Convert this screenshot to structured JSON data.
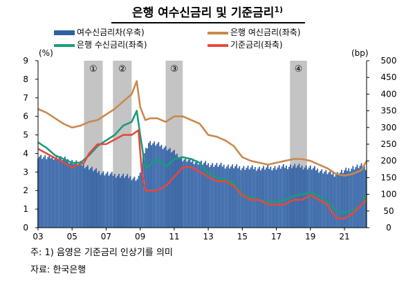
{
  "title": "은행 여수신금리 및 기준금리",
  "title_sup": "1)",
  "legend": [
    {
      "label": "여수신금리차(우축)",
      "color": "#2e5fa4",
      "kind": "bar"
    },
    {
      "label": "은행 여신금리(좌축)",
      "color": "#c8894e",
      "kind": "line"
    },
    {
      "label": "은행 수신금리(좌축)",
      "color": "#1a9b7a",
      "kind": "line"
    },
    {
      "label": "기준금리(좌축)",
      "color": "#e8473d",
      "kind": "line"
    }
  ],
  "unit_left": "(%)",
  "unit_right": "(bp)",
  "note": "주: 1) 음영은 기준금리 인상기를 의미",
  "source": "자료: 한국은행",
  "chart_data": {
    "type": "line",
    "xlabel": "",
    "ylabel": "",
    "x_ticks": [
      "03",
      "05",
      "07",
      "09",
      "11",
      "13",
      "15",
      "17",
      "19",
      "21"
    ],
    "x_range": [
      2003.0,
      2022.3
    ],
    "y_left": {
      "lim": [
        0,
        9
      ],
      "ticks": [
        0,
        1,
        2,
        3,
        4,
        5,
        6,
        7,
        8,
        9
      ]
    },
    "y_right": {
      "lim": [
        0,
        500
      ],
      "ticks": [
        0,
        50,
        100,
        150,
        200,
        250,
        300,
        350,
        400,
        450,
        500
      ]
    },
    "shaded_periods": [
      {
        "label": "①",
        "start": 2005.7,
        "end": 2006.8
      },
      {
        "label": "②",
        "start": 2007.4,
        "end": 2008.5
      },
      {
        "label": "③",
        "start": 2010.5,
        "end": 2011.5
      },
      {
        "label": "④",
        "start": 2017.8,
        "end": 2018.8
      }
    ],
    "series": [
      {
        "name": "여수신금리차(우축)",
        "axis": "right",
        "type": "bar",
        "color": "#2e5fa4",
        "x": [
          2003.0,
          2003.5,
          2004.0,
          2004.5,
          2005.0,
          2005.5,
          2006.0,
          2006.5,
          2007.0,
          2007.5,
          2008.0,
          2008.5,
          2008.9,
          2009.2,
          2009.5,
          2010.0,
          2010.5,
          2011.0,
          2011.5,
          2012.0,
          2013.0,
          2014.0,
          2015.0,
          2016.0,
          2017.0,
          2018.0,
          2019.0,
          2020.0,
          2020.5,
          2021.0,
          2021.5,
          2022.0,
          2022.3
        ],
        "values": [
          215,
          210,
          212,
          206,
          198,
          192,
          180,
          168,
          162,
          158,
          155,
          150,
          145,
          220,
          255,
          250,
          240,
          225,
          205,
          200,
          190,
          185,
          180,
          178,
          180,
          185,
          180,
          165,
          160,
          170,
          180,
          185,
          180
        ]
      },
      {
        "name": "은행 여신금리(좌축)",
        "axis": "left",
        "type": "line",
        "color": "#c8894e",
        "x": [
          2003.0,
          2003.5,
          2004.0,
          2004.5,
          2005.0,
          2005.5,
          2006.0,
          2006.5,
          2007.0,
          2007.5,
          2008.0,
          2008.5,
          2008.8,
          2009.0,
          2009.3,
          2009.6,
          2010.0,
          2010.5,
          2011.0,
          2011.5,
          2012.0,
          2012.5,
          2013.0,
          2013.5,
          2014.0,
          2014.5,
          2015.0,
          2015.5,
          2016.0,
          2016.5,
          2017.0,
          2017.5,
          2018.0,
          2018.5,
          2019.0,
          2019.5,
          2020.0,
          2020.5,
          2021.0,
          2021.5,
          2022.0,
          2022.3
        ],
        "values": [
          6.4,
          6.2,
          5.9,
          5.6,
          5.4,
          5.5,
          5.7,
          5.8,
          6.1,
          6.4,
          6.8,
          7.2,
          7.9,
          6.5,
          5.8,
          5.9,
          5.9,
          5.7,
          6.0,
          6.0,
          5.8,
          5.6,
          5.0,
          4.9,
          4.7,
          4.4,
          3.8,
          3.6,
          3.5,
          3.4,
          3.5,
          3.6,
          3.7,
          3.7,
          3.6,
          3.4,
          3.2,
          2.9,
          2.8,
          2.9,
          3.1,
          3.6
        ]
      },
      {
        "name": "은행 수신금리(좌축)",
        "axis": "left",
        "type": "line",
        "color": "#1a9b7a",
        "x": [
          2003.0,
          2003.5,
          2004.0,
          2004.5,
          2005.0,
          2005.5,
          2006.0,
          2006.5,
          2007.0,
          2007.5,
          2008.0,
          2008.5,
          2008.8,
          2009.0,
          2009.3,
          2009.6,
          2010.0,
          2010.5,
          2011.0,
          2011.5,
          2012.0,
          2012.5,
          2013.0,
          2013.5,
          2014.0,
          2014.5,
          2015.0,
          2015.5,
          2016.0,
          2016.5,
          2017.0,
          2017.5,
          2018.0,
          2018.5,
          2019.0,
          2019.5,
          2020.0,
          2020.5,
          2021.0,
          2021.5,
          2022.0,
          2022.3
        ],
        "values": [
          4.6,
          4.3,
          3.9,
          3.7,
          3.5,
          3.5,
          3.9,
          4.4,
          4.7,
          5.0,
          5.5,
          5.7,
          6.3,
          5.0,
          3.2,
          3.4,
          3.7,
          3.3,
          3.7,
          3.8,
          3.7,
          3.5,
          2.9,
          2.7,
          2.6,
          2.4,
          1.8,
          1.6,
          1.5,
          1.4,
          1.4,
          1.5,
          1.7,
          1.8,
          1.9,
          1.7,
          1.4,
          0.9,
          0.8,
          0.9,
          1.2,
          1.8
        ]
      },
      {
        "name": "기준금리(좌축)",
        "axis": "left",
        "type": "line",
        "color": "#e8473d",
        "x": [
          2003.0,
          2003.5,
          2004.0,
          2004.5,
          2005.0,
          2005.7,
          2006.0,
          2006.5,
          2007.0,
          2007.5,
          2008.0,
          2008.5,
          2008.9,
          2009.1,
          2009.3,
          2010.0,
          2010.5,
          2011.0,
          2011.5,
          2012.0,
          2012.5,
          2013.0,
          2013.5,
          2014.0,
          2014.5,
          2015.0,
          2015.5,
          2016.0,
          2016.5,
          2017.0,
          2017.5,
          2018.0,
          2018.5,
          2019.0,
          2019.5,
          2020.0,
          2020.3,
          2020.6,
          2021.0,
          2021.5,
          2022.0,
          2022.3
        ],
        "values": [
          4.25,
          4.0,
          3.75,
          3.5,
          3.25,
          3.5,
          4.0,
          4.5,
          4.5,
          4.75,
          5.0,
          5.0,
          5.25,
          3.0,
          2.0,
          2.0,
          2.25,
          2.75,
          3.25,
          3.25,
          3.0,
          2.75,
          2.5,
          2.5,
          2.25,
          1.75,
          1.5,
          1.5,
          1.25,
          1.25,
          1.25,
          1.5,
          1.5,
          1.75,
          1.5,
          1.25,
          0.75,
          0.5,
          0.5,
          0.75,
          1.25,
          1.5
        ]
      }
    ]
  }
}
